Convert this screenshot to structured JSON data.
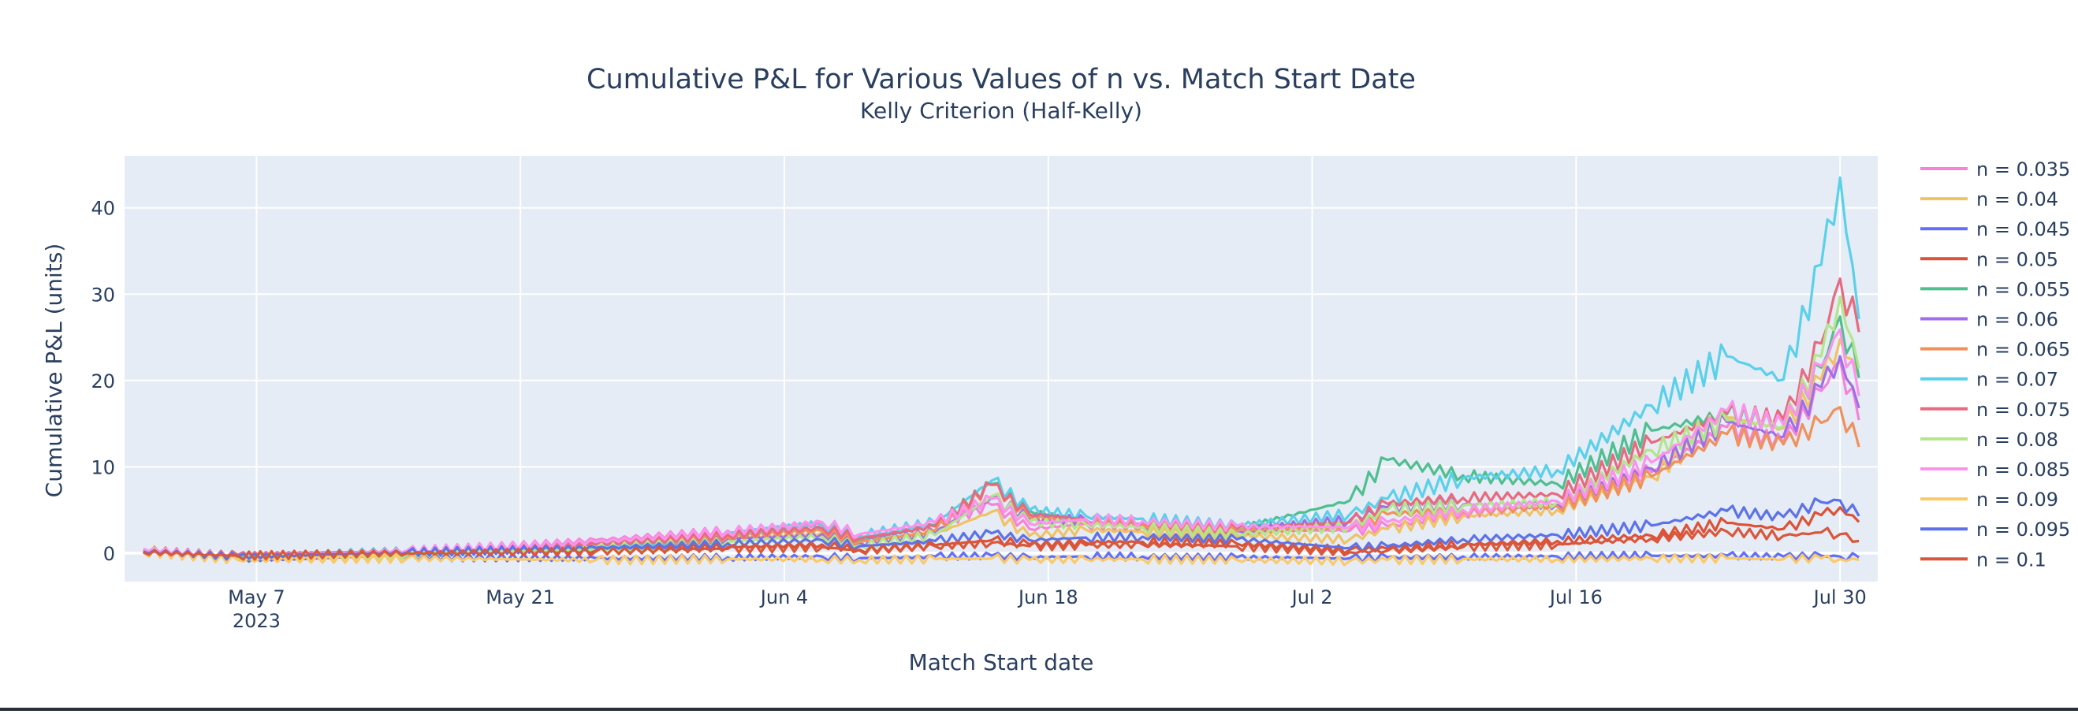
{
  "chart_data": {
    "type": "line",
    "title": "Cumulative P&L for Various Values of n vs. Match Start Date",
    "subtitle": "Kelly Criterion (Half-Kelly)",
    "xlabel": "Match Start date",
    "ylabel": "Cumulative P&L (units)",
    "x_range": [
      "2023-04-30",
      "2023-08-01"
    ],
    "ylim": [
      -3.3,
      46
    ],
    "x_ticks": [
      {
        "date": "2023-05-07",
        "label": "May 7",
        "sublabel": "2023"
      },
      {
        "date": "2023-05-21",
        "label": "May 21",
        "sublabel": ""
      },
      {
        "date": "2023-06-04",
        "label": "Jun 4",
        "sublabel": ""
      },
      {
        "date": "2023-06-18",
        "label": "Jun 18",
        "sublabel": ""
      },
      {
        "date": "2023-07-02",
        "label": "Jul 2",
        "sublabel": ""
      },
      {
        "date": "2023-07-16",
        "label": "Jul 16",
        "sublabel": ""
      },
      {
        "date": "2023-07-30",
        "label": "Jul 30",
        "sublabel": ""
      }
    ],
    "y_ticks": [
      0,
      10,
      20,
      30,
      40
    ],
    "grid": true,
    "legend_position": "right",
    "dates": [
      "2023-05-01",
      "2023-05-06",
      "2023-05-15",
      "2023-05-25",
      "2023-06-01",
      "2023-06-06",
      "2023-06-08",
      "2023-06-12",
      "2023-06-15",
      "2023-06-17",
      "2023-06-20",
      "2023-06-23",
      "2023-06-28",
      "2023-07-04",
      "2023-07-06",
      "2023-07-10",
      "2023-07-15",
      "2023-07-20",
      "2023-07-24",
      "2023-07-27",
      "2023-07-29",
      "2023-07-30",
      "2023-07-31"
    ],
    "series": [
      {
        "name": "n = 0.035",
        "color": "#f683d8",
        "values": [
          0.2,
          -0.4,
          0.1,
          1.5,
          2.6,
          3.3,
          1.8,
          3.2,
          5.6,
          2.8,
          3.4,
          3.1,
          2.7,
          2.6,
          3.1,
          4.6,
          5.5,
          9.4,
          14.6,
          12.8,
          18.8,
          22.4,
          15.4
        ]
      },
      {
        "name": "n = 0.04",
        "color": "#f0c263",
        "values": [
          0.4,
          -0.6,
          -0.1,
          0.8,
          1.8,
          2.4,
          1.1,
          2.2,
          4.8,
          2.0,
          2.7,
          2.5,
          2.0,
          1.6,
          2.8,
          4.3,
          5.0,
          8.8,
          15.7,
          14.5,
          20.1,
          24.8,
          20.4
        ]
      },
      {
        "name": "n = 0.045",
        "color": "#636efa",
        "values": [
          0.1,
          -0.7,
          -0.4,
          -0.6,
          -0.5,
          -0.4,
          -0.6,
          -0.4,
          -0.3,
          -0.5,
          -0.4,
          -0.4,
          -0.5,
          -0.6,
          -0.5,
          -0.4,
          -0.4,
          -0.3,
          -0.3,
          -0.4,
          -0.3,
          -0.4,
          -0.5
        ]
      },
      {
        "name": "n = 0.05",
        "color": "#dd5236",
        "values": [
          0.3,
          -0.3,
          0.2,
          0.3,
          0.7,
          1.0,
          0.4,
          0.9,
          1.5,
          1.0,
          1.2,
          1.3,
          1.1,
          0.4,
          0.5,
          1.0,
          1.4,
          2.0,
          3.5,
          2.8,
          4.4,
          5.3,
          3.6
        ]
      },
      {
        "name": "n = 0.055",
        "color": "#4fbf8f",
        "values": [
          0.2,
          -0.5,
          0.0,
          0.9,
          1.8,
          2.7,
          1.5,
          3.2,
          8.0,
          4.9,
          3.8,
          3.6,
          2.8,
          6.1,
          10.8,
          9.0,
          8.0,
          14.2,
          16.1,
          15.0,
          21.5,
          27.4,
          20.3
        ]
      },
      {
        "name": "n = 0.06",
        "color": "#a06ee8",
        "values": [
          0.2,
          -0.4,
          0.1,
          0.8,
          1.7,
          2.2,
          1.2,
          2.4,
          6.4,
          4.0,
          3.8,
          3.4,
          2.6,
          3.8,
          5.3,
          5.6,
          5.7,
          9.8,
          15.2,
          13.5,
          19.2,
          22.8,
          16.8
        ]
      },
      {
        "name": "n = 0.065",
        "color": "#f0915c",
        "values": [
          0.3,
          -0.3,
          0.2,
          0.9,
          1.9,
          2.6,
          1.3,
          2.6,
          7.9,
          4.2,
          3.6,
          3.3,
          2.5,
          2.9,
          4.5,
          4.9,
          5.4,
          8.9,
          13.8,
          12.6,
          15.1,
          16.9,
          12.3
        ]
      },
      {
        "name": "n = 0.07",
        "color": "#5ad0ea",
        "values": [
          0.1,
          -0.3,
          0.2,
          0.9,
          2.3,
          3.4,
          2.1,
          3.5,
          8.4,
          5.0,
          4.3,
          4.0,
          3.2,
          4.5,
          6.3,
          8.7,
          9.6,
          17.1,
          22.8,
          20.1,
          33.4,
          43.5,
          27.1
        ]
      },
      {
        "name": "n = 0.075",
        "color": "#e86a7e",
        "values": [
          0.2,
          -0.2,
          0.3,
          1.0,
          2.1,
          2.9,
          1.7,
          3.1,
          7.9,
          4.5,
          3.9,
          3.6,
          2.9,
          3.6,
          5.7,
          6.4,
          6.8,
          12.8,
          16.2,
          15.5,
          24.3,
          31.8,
          25.6
        ]
      },
      {
        "name": "n = 0.08",
        "color": "#b3e58a",
        "values": [
          0.3,
          -0.6,
          -0.2,
          0.6,
          1.3,
          1.9,
          0.9,
          2.1,
          6.6,
          3.6,
          3.3,
          3.0,
          2.2,
          3.1,
          5.0,
          5.5,
          5.9,
          11.9,
          15.4,
          14.7,
          22.8,
          29.7,
          21.4
        ]
      },
      {
        "name": "n = 0.085",
        "color": "#fb93ec",
        "values": [
          0.5,
          -0.4,
          0.3,
          1.3,
          2.5,
          3.6,
          2.2,
          3.6,
          6.3,
          3.4,
          3.9,
          3.7,
          3.1,
          3.0,
          3.6,
          5.0,
          6.0,
          10.5,
          16.5,
          14.9,
          21.7,
          25.9,
          18.2
        ]
      },
      {
        "name": "n = 0.09",
        "color": "#fbc967",
        "values": [
          0.1,
          -0.8,
          -0.6,
          -0.8,
          -0.7,
          -0.7,
          -0.8,
          -0.7,
          -0.6,
          -0.8,
          -0.7,
          -0.7,
          -0.8,
          -0.9,
          -0.8,
          -0.7,
          -0.7,
          -0.6,
          -0.6,
          -0.7,
          -0.6,
          -0.7,
          -0.8
        ]
      },
      {
        "name": "n = 0.095",
        "color": "#5d72e8",
        "values": [
          0.2,
          -0.4,
          0.1,
          0.6,
          1.1,
          1.5,
          0.8,
          1.4,
          2.3,
          1.5,
          1.8,
          1.9,
          1.6,
          0.6,
          0.8,
          1.6,
          2.1,
          3.2,
          4.9,
          4.2,
          5.9,
          6.1,
          4.3
        ]
      },
      {
        "name": "n = 0.1",
        "color": "#d9573a",
        "values": [
          0.1,
          -0.3,
          0.0,
          0.2,
          0.5,
          0.7,
          0.3,
          0.8,
          1.2,
          0.8,
          0.9,
          1.0,
          0.8,
          0.1,
          0.3,
          0.7,
          1.0,
          1.7,
          2.5,
          2.0,
          2.4,
          2.2,
          1.4
        ]
      }
    ]
  }
}
